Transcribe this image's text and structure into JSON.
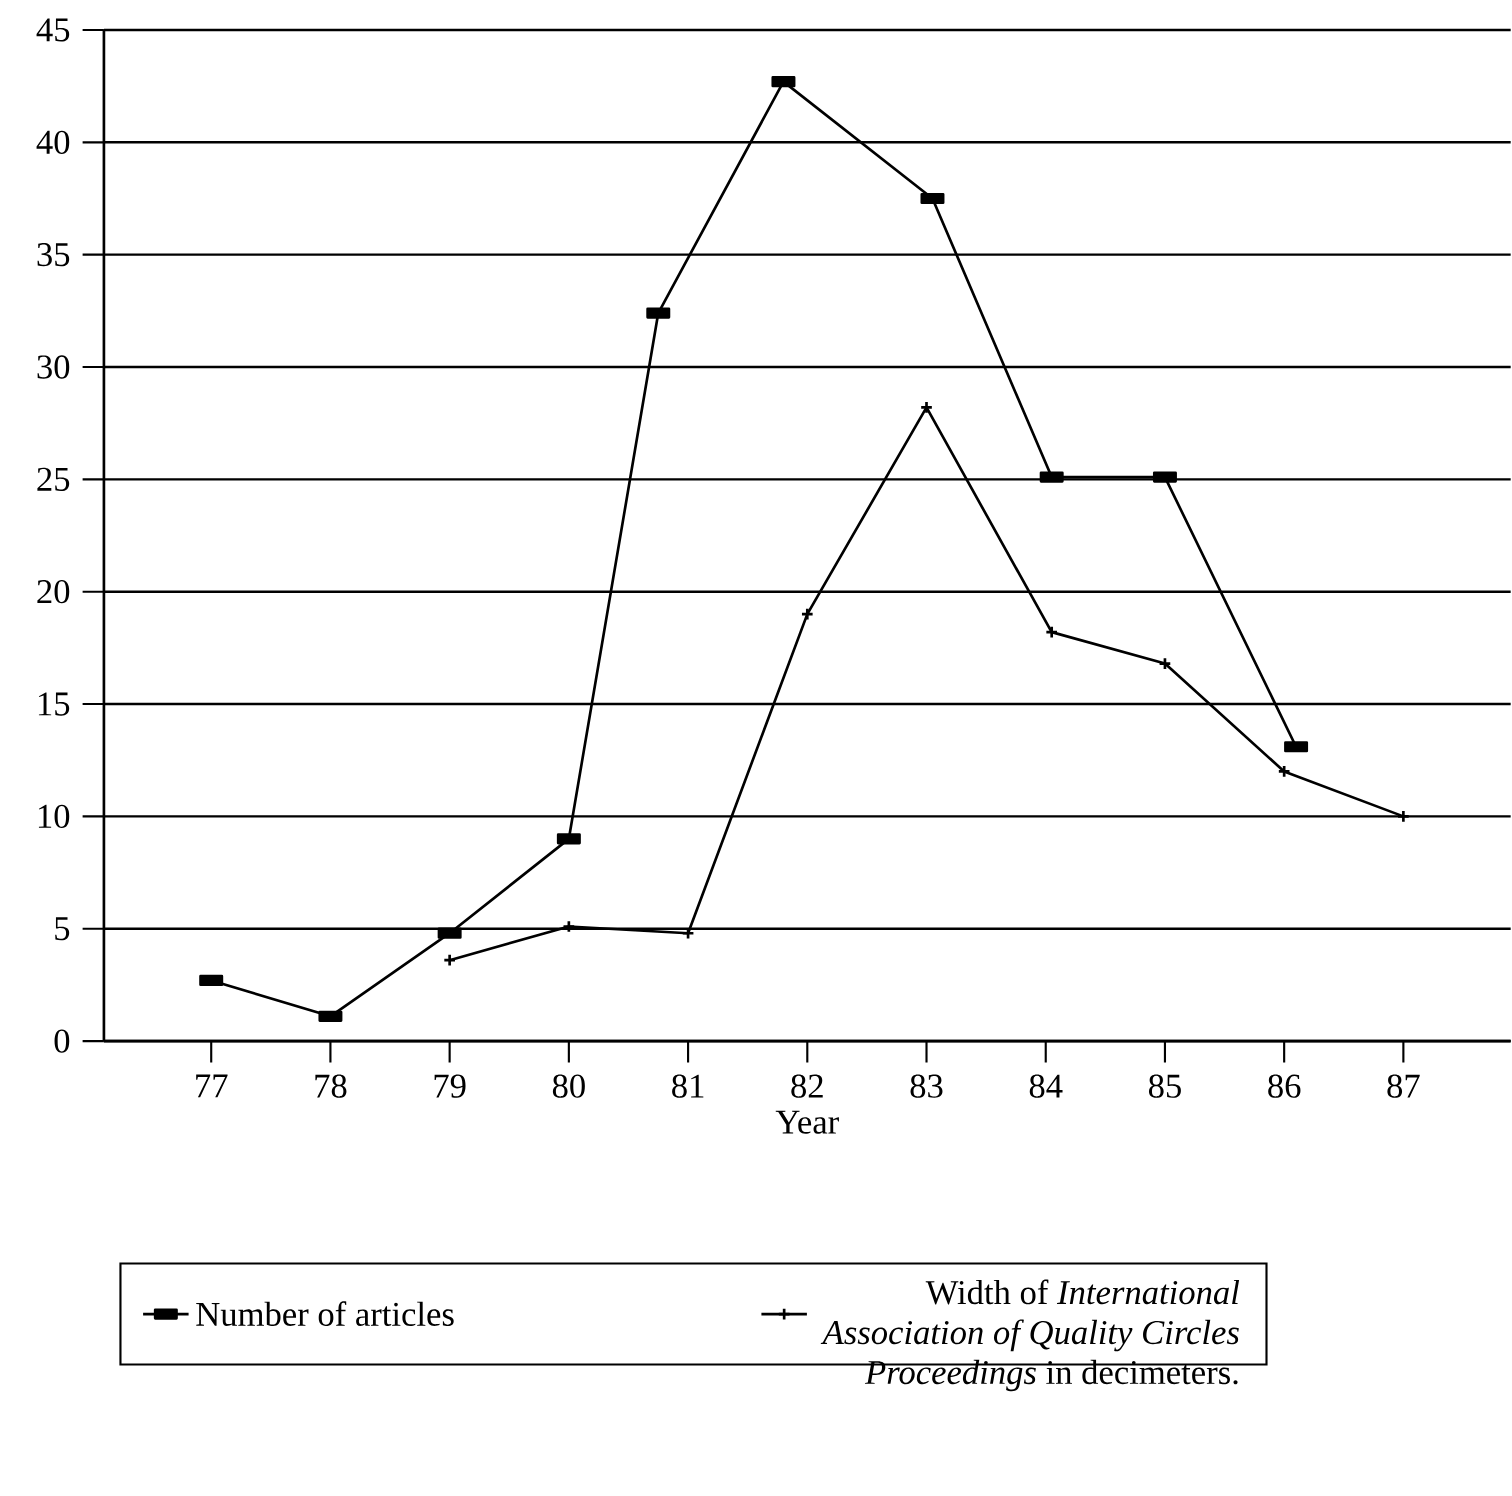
{
  "chart_data": {
    "type": "line",
    "xlabel": "Year",
    "xlim": [
      76.1,
      87.9
    ],
    "xticks": [
      77,
      78,
      79,
      80,
      81,
      82,
      83,
      84,
      85,
      86,
      87
    ],
    "ylim": [
      0,
      45
    ],
    "yticks": [
      0,
      5,
      10,
      15,
      20,
      25,
      30,
      35,
      40,
      45
    ],
    "grid": "y",
    "legend": "bottom",
    "series": [
      {
        "name": "Number of articles",
        "color": "#000000",
        "marker": "square",
        "x": [
          77,
          78,
          79,
          80,
          80.75,
          81.8,
          83.05,
          84.05,
          85,
          86.1
        ],
        "values": [
          2.7,
          1.1,
          4.8,
          9,
          32.4,
          42.7,
          37.5,
          25.1,
          25.1,
          13.1
        ]
      },
      {
        "name": "Width of *International Association of Quality Circles Proceedings* in decimeters.",
        "color": "#000000",
        "marker": "cross",
        "x": [
          79,
          80,
          81,
          82,
          83,
          84.05,
          85,
          86,
          87
        ],
        "values": [
          3.6,
          5.1,
          4.8,
          19,
          28.2,
          18.2,
          16.8,
          12,
          10
        ]
      }
    ]
  }
}
